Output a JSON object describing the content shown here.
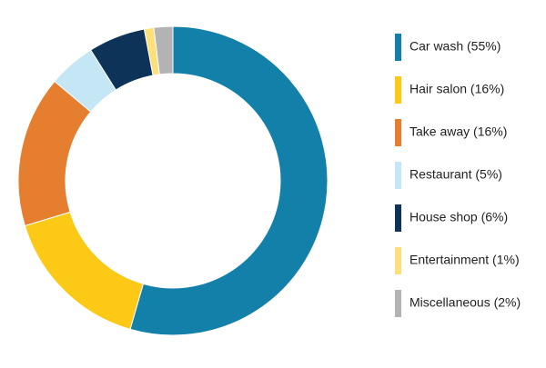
{
  "chart_data": {
    "type": "donut",
    "categories": [
      "Car wash (55%)",
      "Hair salon (16%)",
      "Take away (16%)",
      "Restaurant (5%)",
      "House shop (6%)",
      "Entertainment (1%)",
      "Miscellaneous (2%)"
    ],
    "values": [
      55,
      16,
      16,
      5,
      6,
      1,
      2
    ],
    "colors": [
      "#1380aa",
      "#fcc917",
      "#e57f2f",
      "#c5e6f5",
      "#0d3358",
      "#fde07a",
      "#b3b3b3"
    ]
  }
}
